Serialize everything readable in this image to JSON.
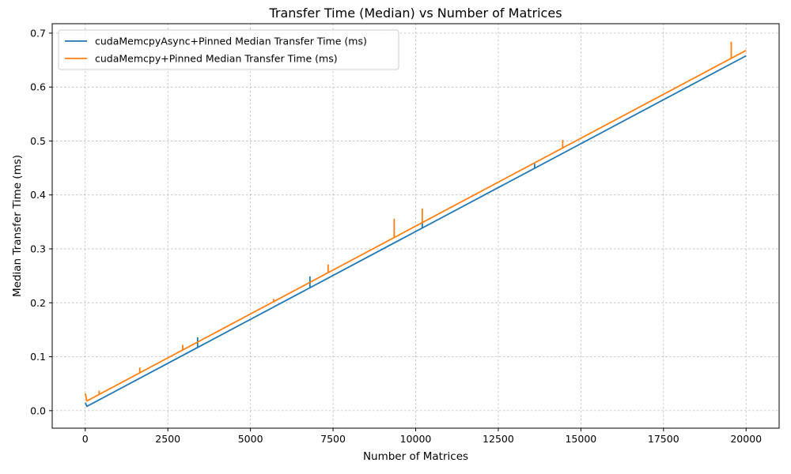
{
  "chart_data": {
    "type": "line",
    "title": "Transfer Time (Median) vs Number of Matrices",
    "xlabel": "Number of Matrices",
    "ylabel": "Median Transfer Time (ms)",
    "xlim": [
      -1000,
      21000
    ],
    "ylim": [
      -0.0325,
      0.7175
    ],
    "xticks": [
      0,
      2500,
      5000,
      7500,
      10000,
      12500,
      15000,
      17500,
      20000
    ],
    "xtick_labels": [
      "0",
      "2500",
      "5000",
      "7500",
      "10000",
      "12500",
      "15000",
      "17500",
      "20000"
    ],
    "yticks": [
      0.0,
      0.1,
      0.2,
      0.3,
      0.4,
      0.5,
      0.6,
      0.7
    ],
    "ytick_labels": [
      "0.0",
      "0.1",
      "0.2",
      "0.3",
      "0.4",
      "0.5",
      "0.6",
      "0.7"
    ],
    "grid": true,
    "legend_position": "top-left",
    "series": [
      {
        "name": "cudaMemcpyAsync+Pinned Median Transfer Time (ms)",
        "color": "#1f77b4",
        "x": [
          0,
          50,
          20000
        ],
        "y": [
          0.015,
          0.008,
          0.658
        ],
        "spikes": [
          {
            "x": 3400,
            "y": 0.136
          },
          {
            "x": 6800,
            "y": 0.249
          },
          {
            "x": 10200,
            "y": 0.35
          },
          {
            "x": 13600,
            "y": 0.458
          }
        ]
      },
      {
        "name": "cudaMemcpy+Pinned Median Transfer Time (ms)",
        "color": "#ff7f0e",
        "x": [
          0,
          50,
          20000
        ],
        "y": [
          0.032,
          0.018,
          0.668
        ],
        "spikes": [
          {
            "x": 420,
            "y": 0.037
          },
          {
            "x": 1650,
            "y": 0.08
          },
          {
            "x": 2950,
            "y": 0.122
          },
          {
            "x": 5700,
            "y": 0.207
          },
          {
            "x": 7350,
            "y": 0.271
          },
          {
            "x": 9350,
            "y": 0.356
          },
          {
            "x": 10200,
            "y": 0.375
          },
          {
            "x": 14450,
            "y": 0.502
          },
          {
            "x": 19550,
            "y": 0.684
          }
        ]
      }
    ]
  }
}
